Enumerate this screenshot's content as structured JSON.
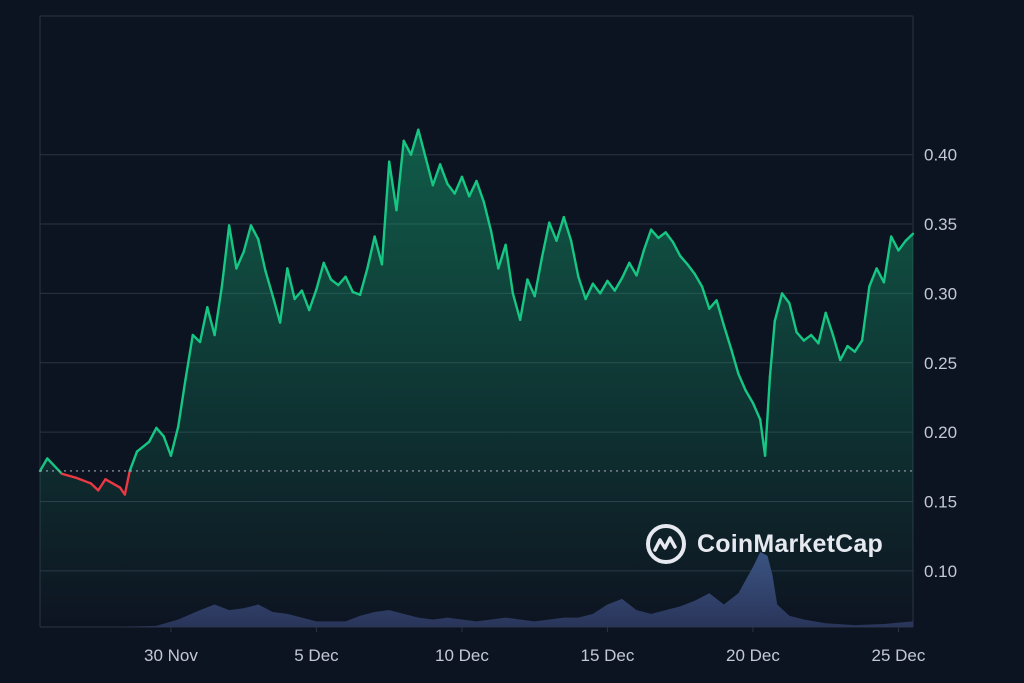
{
  "chart_data": {
    "type": "area",
    "title": "",
    "xlabel": "",
    "ylabel": "",
    "x_tick_labels": [
      "30 Nov",
      "5 Dec",
      "10 Dec",
      "15 Dec",
      "20 Dec",
      "25 Dec"
    ],
    "y_tick_labels": [
      "0.10",
      "0.15",
      "0.20",
      "0.25",
      "0.30",
      "0.35",
      "0.40"
    ],
    "y_ticks": [
      0.1,
      0.15,
      0.2,
      0.25,
      0.3,
      0.35,
      0.4
    ],
    "ylim": [
      0.0595,
      0.5
    ],
    "x_range_days": [
      "2023-11-25T12:00",
      "2023-12-25T12:00"
    ],
    "baseline": 0.172,
    "grid": true,
    "colors": {
      "up": "#16c784",
      "down": "#ea3943",
      "volume": "#3a4a7a",
      "grid": "#2b3243",
      "background": "#0d1421"
    },
    "series": [
      {
        "values_by_date": [
          [
            "2023-11-25T12:00",
            0.172
          ],
          [
            "2023-11-25T18:00",
            0.181
          ],
          [
            "2023-11-26T06:00",
            0.17
          ],
          [
            "2023-11-26T18:00",
            0.167
          ],
          [
            "2023-11-27T06:00",
            0.163
          ],
          [
            "2023-11-27T12:00",
            0.158
          ],
          [
            "2023-11-27T18:00",
            0.166
          ],
          [
            "2023-11-28T06:00",
            0.16
          ],
          [
            "2023-11-28T10:00",
            0.155
          ],
          [
            "2023-11-28T14:00",
            0.172
          ],
          [
            "2023-11-28T20:00",
            0.186
          ],
          [
            "2023-11-29T06:00",
            0.193
          ],
          [
            "2023-11-29T12:00",
            0.203
          ],
          [
            "2023-11-29T18:00",
            0.197
          ],
          [
            "2023-11-30T00:00",
            0.183
          ],
          [
            "2023-11-30T06:00",
            0.204
          ],
          [
            "2023-11-30T12:00",
            0.238
          ],
          [
            "2023-11-30T18:00",
            0.27
          ],
          [
            "2023-12-01T00:00",
            0.265
          ],
          [
            "2023-12-01T06:00",
            0.29
          ],
          [
            "2023-12-01T12:00",
            0.27
          ],
          [
            "2023-12-01T18:00",
            0.305
          ],
          [
            "2023-12-02T00:00",
            0.349
          ],
          [
            "2023-12-02T06:00",
            0.318
          ],
          [
            "2023-12-02T12:00",
            0.33
          ],
          [
            "2023-12-02T18:00",
            0.349
          ],
          [
            "2023-12-03T00:00",
            0.339
          ],
          [
            "2023-12-03T06:00",
            0.316
          ],
          [
            "2023-12-03T12:00",
            0.298
          ],
          [
            "2023-12-03T18:00",
            0.279
          ],
          [
            "2023-12-04T00:00",
            0.318
          ],
          [
            "2023-12-04T06:00",
            0.296
          ],
          [
            "2023-12-04T12:00",
            0.302
          ],
          [
            "2023-12-04T18:00",
            0.288
          ],
          [
            "2023-12-05T00:00",
            0.303
          ],
          [
            "2023-12-05T06:00",
            0.322
          ],
          [
            "2023-12-05T12:00",
            0.31
          ],
          [
            "2023-12-05T18:00",
            0.306
          ],
          [
            "2023-12-06T00:00",
            0.312
          ],
          [
            "2023-12-06T06:00",
            0.301
          ],
          [
            "2023-12-06T12:00",
            0.299
          ],
          [
            "2023-12-06T18:00",
            0.318
          ],
          [
            "2023-12-07T00:00",
            0.341
          ],
          [
            "2023-12-07T06:00",
            0.321
          ],
          [
            "2023-12-07T12:00",
            0.395
          ],
          [
            "2023-12-07T18:00",
            0.36
          ],
          [
            "2023-12-08T00:00",
            0.41
          ],
          [
            "2023-12-08T06:00",
            0.4
          ],
          [
            "2023-12-08T12:00",
            0.418
          ],
          [
            "2023-12-08T18:00",
            0.398
          ],
          [
            "2023-12-09T00:00",
            0.378
          ],
          [
            "2023-12-09T06:00",
            0.393
          ],
          [
            "2023-12-09T12:00",
            0.379
          ],
          [
            "2023-12-09T18:00",
            0.372
          ],
          [
            "2023-12-10T00:00",
            0.384
          ],
          [
            "2023-12-10T06:00",
            0.37
          ],
          [
            "2023-12-10T12:00",
            0.381
          ],
          [
            "2023-12-10T18:00",
            0.366
          ],
          [
            "2023-12-11T00:00",
            0.345
          ],
          [
            "2023-12-11T06:00",
            0.318
          ],
          [
            "2023-12-11T12:00",
            0.335
          ],
          [
            "2023-12-11T18:00",
            0.3
          ],
          [
            "2023-12-12T00:00",
            0.281
          ],
          [
            "2023-12-12T06:00",
            0.31
          ],
          [
            "2023-12-12T12:00",
            0.298
          ],
          [
            "2023-12-12T18:00",
            0.326
          ],
          [
            "2023-12-13T00:00",
            0.351
          ],
          [
            "2023-12-13T06:00",
            0.338
          ],
          [
            "2023-12-13T12:00",
            0.355
          ],
          [
            "2023-12-13T18:00",
            0.338
          ],
          [
            "2023-12-14T00:00",
            0.312
          ],
          [
            "2023-12-14T06:00",
            0.296
          ],
          [
            "2023-12-14T12:00",
            0.307
          ],
          [
            "2023-12-14T18:00",
            0.3
          ],
          [
            "2023-12-15T00:00",
            0.309
          ],
          [
            "2023-12-15T06:00",
            0.302
          ],
          [
            "2023-12-15T12:00",
            0.311
          ],
          [
            "2023-12-15T18:00",
            0.322
          ],
          [
            "2023-12-16T00:00",
            0.313
          ],
          [
            "2023-12-16T06:00",
            0.331
          ],
          [
            "2023-12-16T12:00",
            0.346
          ],
          [
            "2023-12-16T18:00",
            0.34
          ],
          [
            "2023-12-17T00:00",
            0.344
          ],
          [
            "2023-12-17T06:00",
            0.337
          ],
          [
            "2023-12-17T12:00",
            0.327
          ],
          [
            "2023-12-17T18:00",
            0.321
          ],
          [
            "2023-12-18T00:00",
            0.314
          ],
          [
            "2023-12-18T06:00",
            0.305
          ],
          [
            "2023-12-18T12:00",
            0.289
          ],
          [
            "2023-12-18T18:00",
            0.295
          ],
          [
            "2023-12-19T00:00",
            0.277
          ],
          [
            "2023-12-19T06:00",
            0.26
          ],
          [
            "2023-12-19T12:00",
            0.242
          ],
          [
            "2023-12-19T18:00",
            0.23
          ],
          [
            "2023-12-20T00:00",
            0.221
          ],
          [
            "2023-12-20T06:00",
            0.209
          ],
          [
            "2023-12-20T10:00",
            0.183
          ],
          [
            "2023-12-20T14:00",
            0.24
          ],
          [
            "2023-12-20T18:00",
            0.28
          ],
          [
            "2023-12-21T00:00",
            0.3
          ],
          [
            "2023-12-21T06:00",
            0.293
          ],
          [
            "2023-12-21T12:00",
            0.272
          ],
          [
            "2023-12-21T18:00",
            0.266
          ],
          [
            "2023-12-22T00:00",
            0.27
          ],
          [
            "2023-12-22T06:00",
            0.264
          ],
          [
            "2023-12-22T12:00",
            0.286
          ],
          [
            "2023-12-22T18:00",
            0.27
          ],
          [
            "2023-12-23T00:00",
            0.252
          ],
          [
            "2023-12-23T06:00",
            0.262
          ],
          [
            "2023-12-23T12:00",
            0.258
          ],
          [
            "2023-12-23T18:00",
            0.266
          ],
          [
            "2023-12-24T00:00",
            0.305
          ],
          [
            "2023-12-24T06:00",
            0.318
          ],
          [
            "2023-12-24T12:00",
            0.308
          ],
          [
            "2023-12-24T18:00",
            0.341
          ],
          [
            "2023-12-25T00:00",
            0.331
          ],
          [
            "2023-12-25T06:00",
            0.338
          ],
          [
            "2023-12-25T12:00",
            0.343
          ]
        ]
      }
    ],
    "volume": {
      "values_by_date": [
        [
          "2023-11-25T12:00",
          0.0
        ],
        [
          "2023-11-28T00:00",
          0.0
        ],
        [
          "2023-11-29T12:00",
          0.3
        ],
        [
          "2023-11-30T06:00",
          2.0
        ],
        [
          "2023-12-01T00:00",
          4.5
        ],
        [
          "2023-12-01T12:00",
          6.0
        ],
        [
          "2023-12-02T00:00",
          4.5
        ],
        [
          "2023-12-02T12:00",
          5.0
        ],
        [
          "2023-12-03T00:00",
          6.0
        ],
        [
          "2023-12-03T12:00",
          4.0
        ],
        [
          "2023-12-04T00:00",
          3.5
        ],
        [
          "2023-12-04T12:00",
          2.5
        ],
        [
          "2023-12-05T00:00",
          1.5
        ],
        [
          "2023-12-05T12:00",
          1.5
        ],
        [
          "2023-12-06T00:00",
          1.5
        ],
        [
          "2023-12-06T12:00",
          3.0
        ],
        [
          "2023-12-07T00:00",
          4.0
        ],
        [
          "2023-12-07T12:00",
          4.5
        ],
        [
          "2023-12-08T00:00",
          3.5
        ],
        [
          "2023-12-08T12:00",
          2.5
        ],
        [
          "2023-12-09T00:00",
          2.0
        ],
        [
          "2023-12-09T12:00",
          2.5
        ],
        [
          "2023-12-10T00:00",
          2.0
        ],
        [
          "2023-12-10T12:00",
          1.5
        ],
        [
          "2023-12-11T00:00",
          2.0
        ],
        [
          "2023-12-11T12:00",
          2.5
        ],
        [
          "2023-12-12T00:00",
          2.0
        ],
        [
          "2023-12-12T12:00",
          1.5
        ],
        [
          "2023-12-13T00:00",
          2.0
        ],
        [
          "2023-12-13T12:00",
          2.5
        ],
        [
          "2023-12-14T00:00",
          2.5
        ],
        [
          "2023-12-14T12:00",
          3.5
        ],
        [
          "2023-12-15T00:00",
          6.0
        ],
        [
          "2023-12-15T12:00",
          7.5
        ],
        [
          "2023-12-16T00:00",
          4.5
        ],
        [
          "2023-12-16T12:00",
          3.5
        ],
        [
          "2023-12-17T00:00",
          4.5
        ],
        [
          "2023-12-17T12:00",
          5.5
        ],
        [
          "2023-12-18T00:00",
          7.0
        ],
        [
          "2023-12-18T12:00",
          9.0
        ],
        [
          "2023-12-19T00:00",
          6.0
        ],
        [
          "2023-12-19T12:00",
          9.0
        ],
        [
          "2023-12-20T00:00",
          16.0
        ],
        [
          "2023-12-20T06:00",
          20.0
        ],
        [
          "2023-12-20T12:00",
          19.0
        ],
        [
          "2023-12-20T16:00",
          14.0
        ],
        [
          "2023-12-20T20:00",
          6.0
        ],
        [
          "2023-12-21T06:00",
          3.0
        ],
        [
          "2023-12-21T18:00",
          2.0
        ],
        [
          "2023-12-22T12:00",
          1.0
        ],
        [
          "2023-12-23T12:00",
          0.5
        ],
        [
          "2023-12-24T12:00",
          0.8
        ],
        [
          "2023-12-25T12:00",
          1.5
        ]
      ]
    }
  },
  "watermark": {
    "text": "CoinMarketCap",
    "icon": "coinmarketcap-logo-icon"
  }
}
